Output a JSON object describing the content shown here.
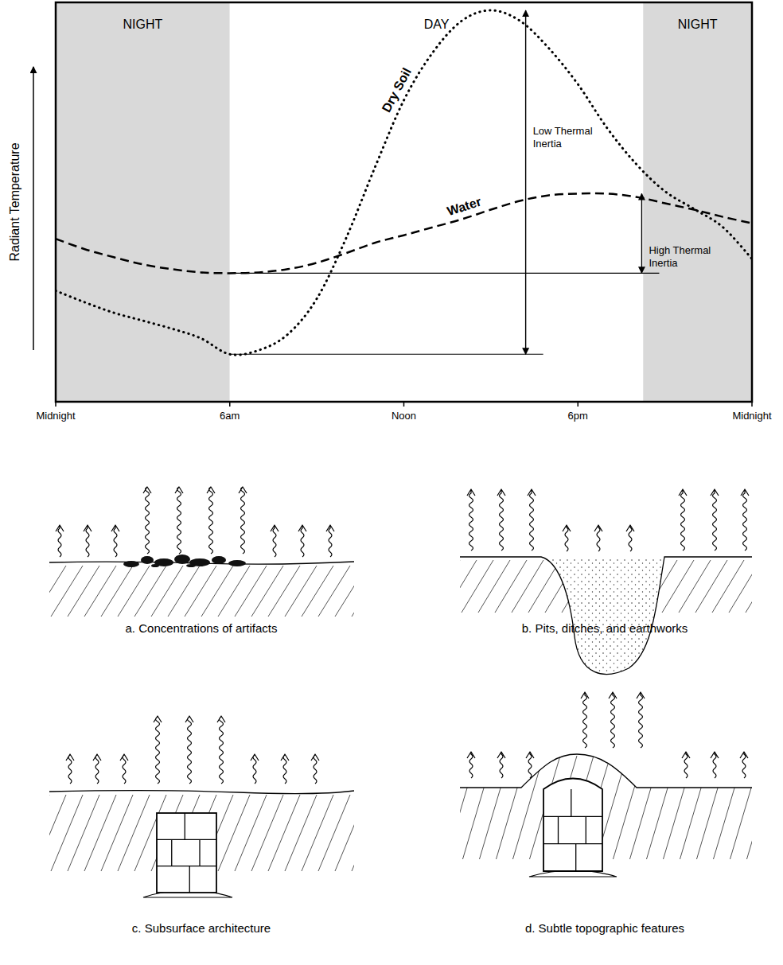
{
  "chart_data": {
    "type": "line",
    "ylabel": "Radiant Temperature",
    "x": [
      0,
      1,
      2,
      3,
      4,
      5,
      6,
      7,
      8,
      9,
      10,
      11,
      12,
      13,
      14,
      15,
      16,
      17,
      18,
      19,
      20,
      21,
      22,
      23,
      24
    ],
    "xlim": [
      0,
      24
    ],
    "xticks": [
      {
        "value": 0,
        "label": "Midnight"
      },
      {
        "value": 6,
        "label": "6am"
      },
      {
        "value": 12,
        "label": "Noon"
      },
      {
        "value": 18,
        "label": "6pm"
      },
      {
        "value": 24,
        "label": "Midnight"
      }
    ],
    "ylim": [
      0,
      100
    ],
    "tick_labels": "x",
    "grid": false,
    "series": [
      {
        "name": "Dry Soil",
        "color": "#000000",
        "line_style": "dotted",
        "values": [
          27.8,
          24.9,
          22.3,
          20.3,
          18.3,
          15.9,
          11.9,
          12.9,
          16.9,
          25.8,
          40.8,
          58.6,
          75.5,
          87.5,
          95.4,
          98.0,
          95.4,
          88.5,
          79.5,
          68.6,
          59.6,
          52.7,
          48.3,
          43.7,
          35.8
        ]
      },
      {
        "name": "Water",
        "color": "#000000",
        "line_style": "dashed",
        "values": [
          40.8,
          38.2,
          36.2,
          34.4,
          33.2,
          32.4,
          32.2,
          32.4,
          33.2,
          34.8,
          37.2,
          39.8,
          41.7,
          43.7,
          45.7,
          48.1,
          50.3,
          51.7,
          52.1,
          52.1,
          51.3,
          49.7,
          48.1,
          46.3,
          44.7
        ]
      }
    ],
    "annotations": [
      {
        "type": "band",
        "label": "NIGHT",
        "from": 0,
        "to": 6,
        "color": "#d9d9d9"
      },
      {
        "type": "band",
        "label": "DAY",
        "from": 6,
        "to": 20.25,
        "color": "#ffffff"
      },
      {
        "type": "band",
        "label": "NIGHT",
        "from": 20.25,
        "to": 24,
        "color": "#d9d9d9"
      },
      {
        "type": "range",
        "label": "Low Thermal Inertia",
        "series": "Dry Soil",
        "x": 16.2
      },
      {
        "type": "range",
        "label": "High Thermal Inertia",
        "series": "Water",
        "x": 20.2
      }
    ]
  },
  "panels": [
    {
      "caption": "a. Concentrations of artifacts"
    },
    {
      "caption": "b. Pits, ditches, and earthworks"
    },
    {
      "caption": "c. Subsurface architecture"
    },
    {
      "caption": "d. Subtle topographic features"
    }
  ]
}
